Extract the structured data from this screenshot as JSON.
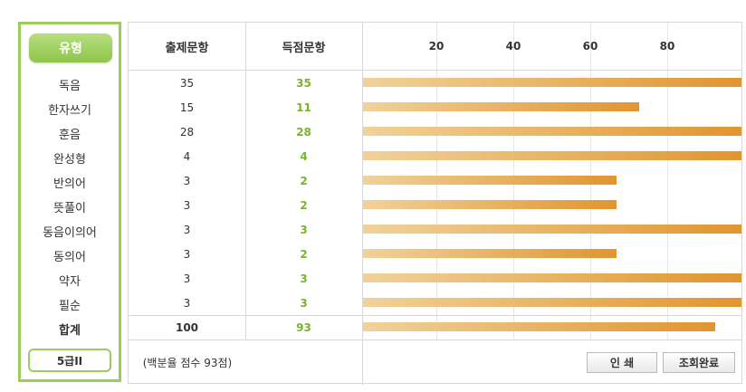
{
  "sidebar": {
    "type_button": "유형",
    "items": [
      "독음",
      "한자쓰기",
      "훈음",
      "완성형",
      "반의어",
      "뜻풀이",
      "동음이의어",
      "동의어",
      "약자",
      "필순"
    ],
    "total_label": "합계",
    "level_button": "5급II"
  },
  "header": {
    "questions_label": "출제문항",
    "score_label": "득점문항"
  },
  "chart_data": {
    "type": "bar",
    "categories": [
      "독음",
      "한자쓰기",
      "훈음",
      "완성형",
      "반의어",
      "뜻풀이",
      "동음이의어",
      "동의어",
      "약자",
      "필순",
      "합계"
    ],
    "values": [
      100,
      73,
      100,
      100,
      67,
      67,
      100,
      67,
      100,
      100,
      93
    ],
    "xticks": [
      "20",
      "40",
      "60",
      "80"
    ],
    "xlim": [
      0,
      100
    ],
    "grid": true
  },
  "table": {
    "questions": [
      "35",
      "15",
      "28",
      "4",
      "3",
      "3",
      "3",
      "3",
      "3",
      "3"
    ],
    "scores": [
      "35",
      "11",
      "28",
      "4",
      "2",
      "2",
      "3",
      "2",
      "3",
      "3"
    ],
    "total_questions": "100",
    "total_score": "93"
  },
  "footer": {
    "note": "(백분율 점수 93점)",
    "print_button": "인 쇄",
    "done_button": "조회완료"
  },
  "colors": {
    "accent_green": "#8ec44c",
    "score_green": "#7ab32e",
    "bar_start": "#f0d29a",
    "bar_end": "#e1952f"
  }
}
